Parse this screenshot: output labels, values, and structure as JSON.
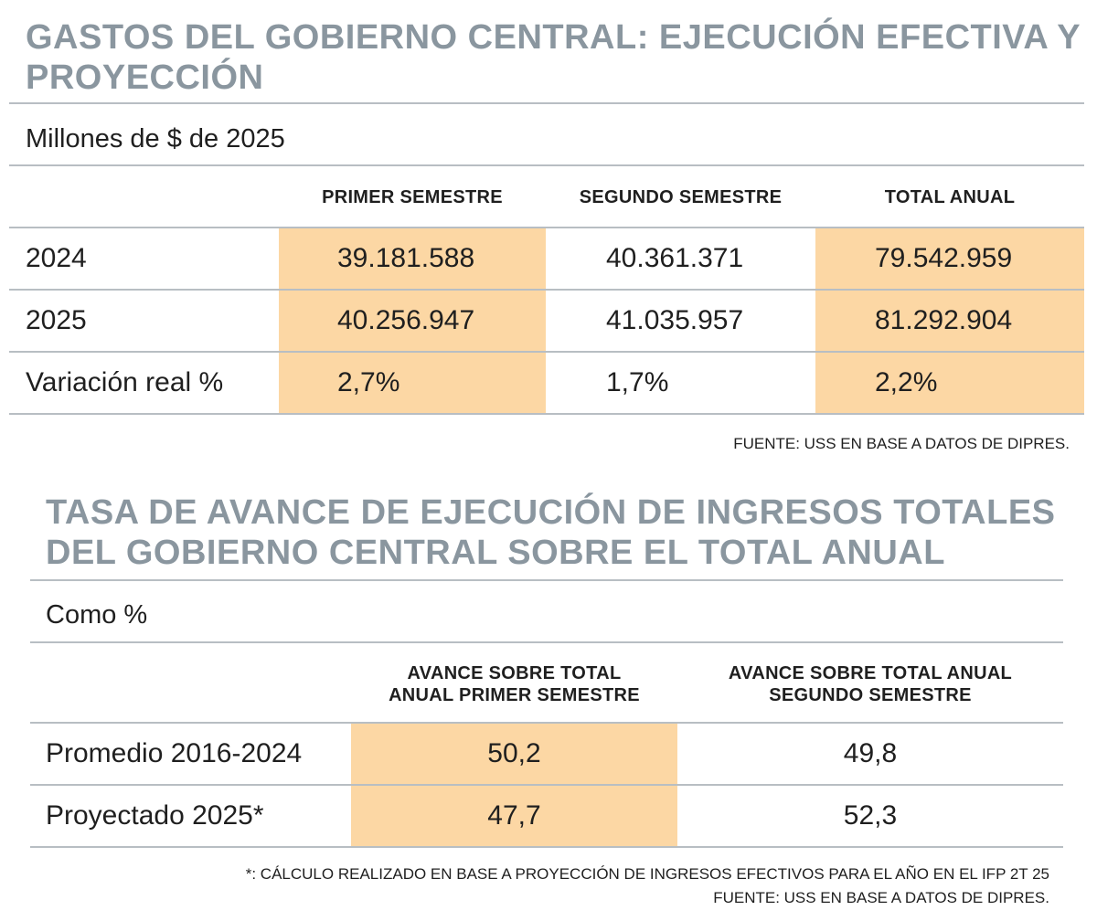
{
  "table1": {
    "title": "GASTOS DEL GOBIERNO CENTRAL: EJECUCIÓN EFECTIVA Y PROYECCIÓN",
    "subtitle": "Millones de $ de 2025",
    "headers": [
      "PRIMER SEMESTRE",
      "SEGUNDO SEMESTRE",
      "TOTAL ANUAL"
    ],
    "rows": [
      {
        "label": "2024",
        "values": [
          "39.181.588",
          "40.361.371",
          "79.542.959"
        ]
      },
      {
        "label": "2025",
        "values": [
          "40.256.947",
          "41.035.957",
          "81.292.904"
        ]
      },
      {
        "label": "Variación real %",
        "values": [
          "2,7%",
          "1,7%",
          "2,2%"
        ]
      }
    ],
    "source": "FUENTE: USS EN BASE A DATOS DE DIPRES."
  },
  "table2": {
    "title": "TASA DE AVANCE DE EJECUCIÓN DE INGRESOS TOTALES DEL GOBIERNO CENTRAL SOBRE EL TOTAL ANUAL",
    "subtitle": "Como %",
    "headers": [
      {
        "line1": "AVANCE SOBRE TOTAL",
        "line2": "ANUAL PRIMER SEMESTRE"
      },
      {
        "line1": "AVANCE SOBRE TOTAL ANUAL",
        "line2": "SEGUNDO SEMESTRE"
      }
    ],
    "rows": [
      {
        "label": "Promedio 2016-2024",
        "values": [
          "50,2",
          "49,8"
        ]
      },
      {
        "label": "Proyectado 2025*",
        "values": [
          "47,7",
          "52,3"
        ]
      }
    ],
    "note": "*: CÁLCULO REALIZADO EN BASE A PROYECCIÓN DE INGRESOS EFECTIVOS PARA EL AÑO EN EL IFP 2T 25",
    "source": "FUENTE: USS EN BASE A DATOS DE DIPRES."
  },
  "colors": {
    "title": "#8a969f",
    "highlight": "#fcd7a4",
    "rule": "#b8bec3",
    "text": "#1f1f1f"
  }
}
